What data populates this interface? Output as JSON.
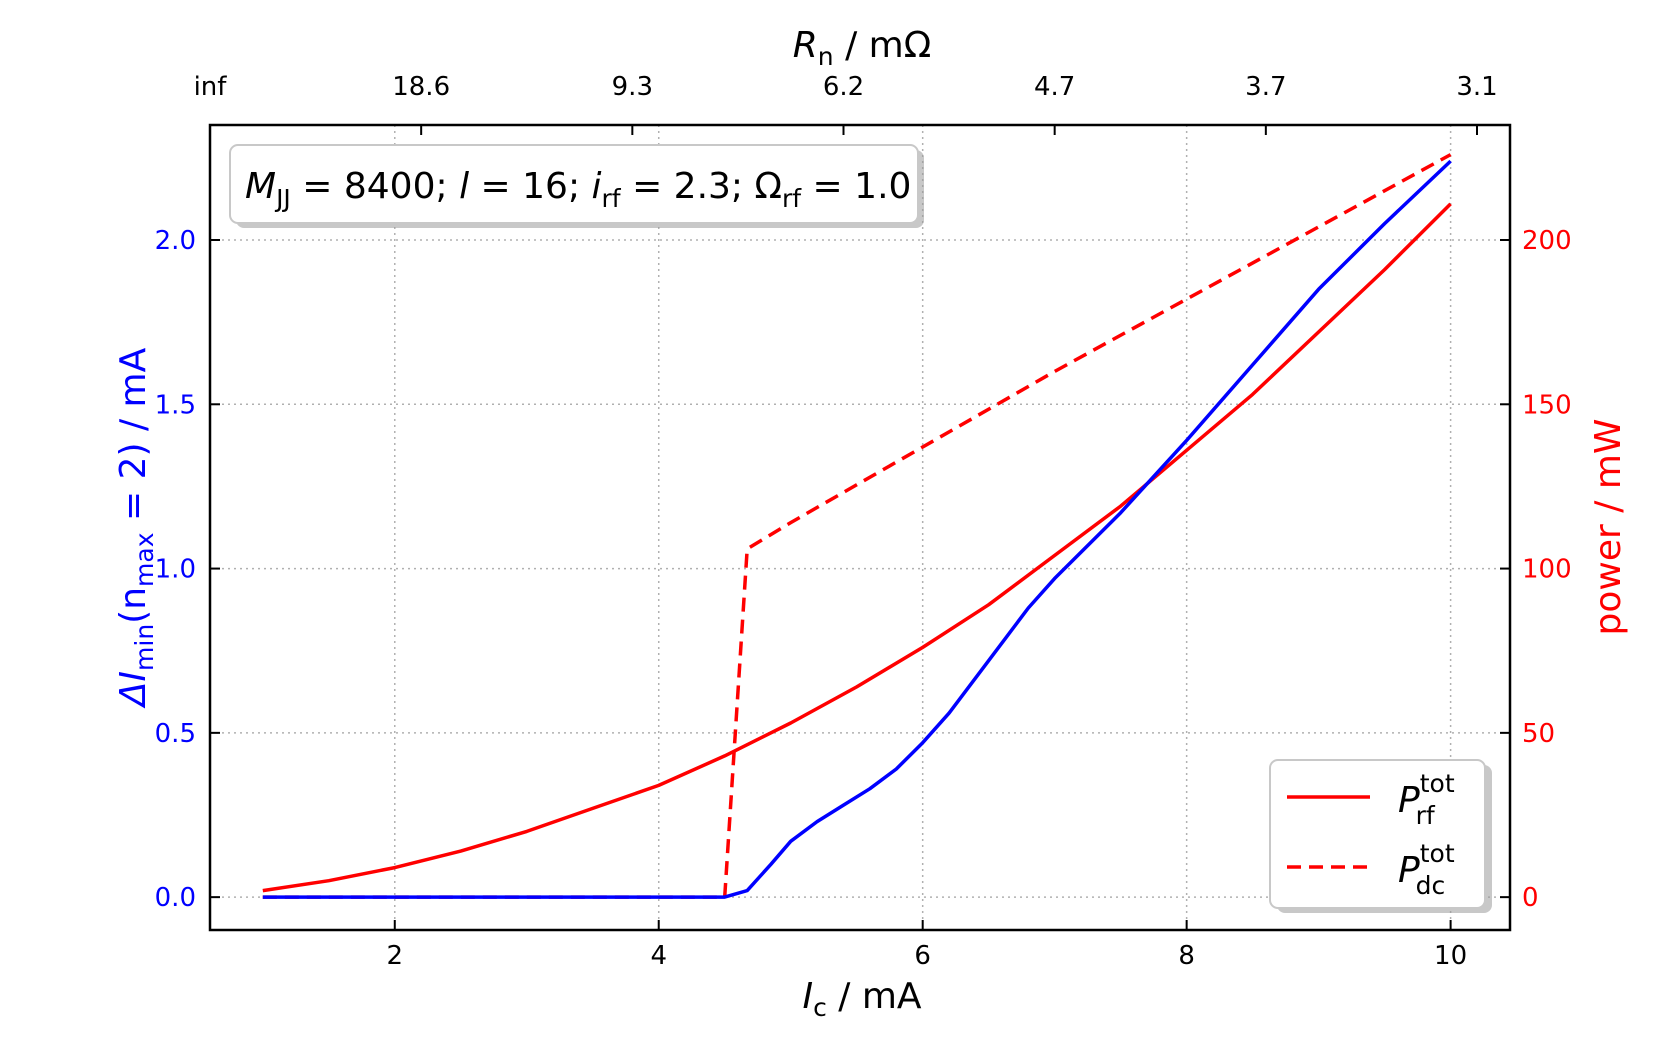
{
  "chart_data": {
    "type": "line",
    "annotation": {
      "M_sym": "M",
      "M_sub": "JJ",
      "M_val": " = 8400; ",
      "l_sym": "l",
      "l_val": " = 16; ",
      "i_sym": "i",
      "i_sub": "rf",
      "i_val": " = 2.3; ",
      "Om_sym": "Ω",
      "Om_sub": "rf",
      "Om_val": " = 1.0"
    },
    "x_axis": {
      "label_sym": "I",
      "label_sub": "c",
      "label_unit": " / mA",
      "range": [
        0.6,
        10.45
      ],
      "ticks": [
        2,
        4,
        6,
        8,
        10
      ],
      "tick_labels": [
        "2",
        "4",
        "6",
        "8",
        "10"
      ]
    },
    "top_axis": {
      "label_sym": "R",
      "label_sub": "n",
      "label_unit": " / mΩ",
      "tick_positions": [
        0.6,
        2.2,
        3.8,
        5.4,
        7.0,
        8.6,
        10.2
      ],
      "tick_labels": [
        "inf",
        "18.6",
        "9.3",
        "6.2",
        "4.7",
        "3.7",
        "3.1"
      ]
    },
    "y_left": {
      "label_pre": "ΔI",
      "label_sub1": "min",
      "label_mid": "(n",
      "label_sub2": "max",
      "label_post": " = 2) / mA",
      "range": [
        -0.1,
        2.35
      ],
      "ticks": [
        0.0,
        0.5,
        1.0,
        1.5,
        2.0
      ],
      "tick_labels": [
        "0.0",
        "0.5",
        "1.0",
        "1.5",
        "2.0"
      ],
      "color": "#0000ff"
    },
    "y_right": {
      "label": "power / mW",
      "range": [
        -10,
        235
      ],
      "ticks": [
        0,
        50,
        100,
        150,
        200
      ],
      "tick_labels": [
        "0",
        "50",
        "100",
        "150",
        "200"
      ],
      "color": "#ff0000"
    },
    "grid": true,
    "legend_position": "lower right",
    "series": [
      {
        "name_sym": "P",
        "name_sup": "tot",
        "name_sub": "rf",
        "axis": "right",
        "color": "#ff0000",
        "style": "solid",
        "x": [
          1.0,
          1.5,
          2.0,
          2.5,
          3.0,
          3.5,
          4.0,
          4.5,
          5.0,
          5.5,
          6.0,
          6.5,
          7.0,
          7.5,
          8.0,
          8.5,
          9.0,
          9.5,
          10.0
        ],
        "y": [
          2,
          5,
          9,
          14,
          20,
          27,
          34,
          43,
          53,
          64,
          76,
          89,
          104,
          119,
          136,
          153,
          172,
          191,
          211
        ]
      },
      {
        "name_sym": "P",
        "name_sup": "tot",
        "name_sub": "dc",
        "axis": "right",
        "color": "#ff0000",
        "style": "dashed",
        "x": [
          1.0,
          4.5,
          4.67,
          5.0,
          6.0,
          7.0,
          8.0,
          9.0,
          10.0
        ],
        "y": [
          0,
          0,
          106,
          114,
          137,
          160,
          182,
          204,
          226
        ]
      },
      {
        "name_sym": "",
        "axis": "left",
        "color": "#0000ff",
        "style": "solid",
        "x": [
          1.0,
          4.5,
          4.67,
          4.85,
          5.0,
          5.2,
          5.4,
          5.6,
          5.8,
          6.0,
          6.2,
          6.5,
          6.8,
          7.0,
          7.5,
          8.0,
          8.5,
          9.0,
          9.5,
          10.0
        ],
        "y": [
          0.0,
          0.0,
          0.02,
          0.1,
          0.17,
          0.23,
          0.28,
          0.33,
          0.39,
          0.47,
          0.56,
          0.72,
          0.88,
          0.97,
          1.17,
          1.39,
          1.62,
          1.85,
          2.05,
          2.24
        ]
      }
    ]
  }
}
